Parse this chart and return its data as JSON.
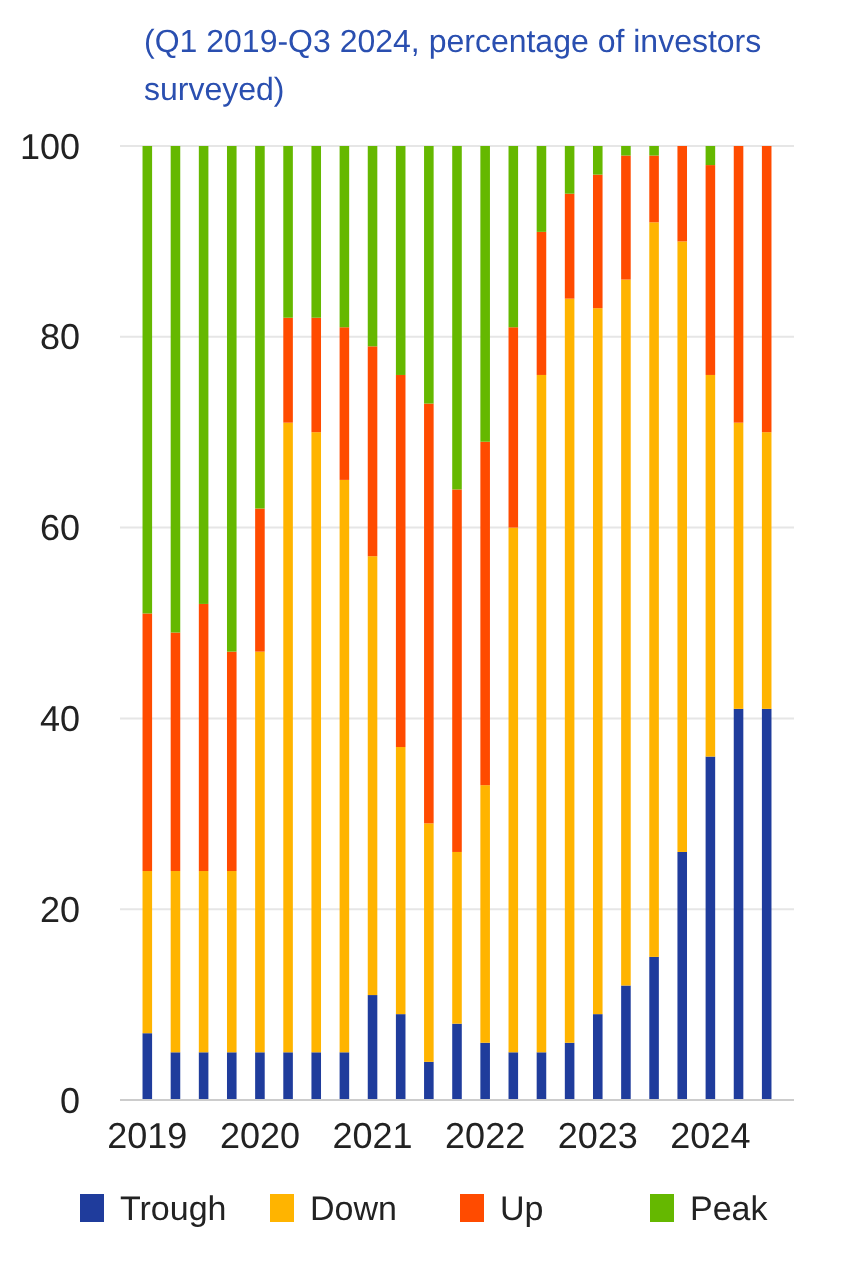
{
  "chart_data": {
    "type": "bar",
    "stacked": true,
    "subtitle": "(Q1 2019-Q3 2024, percentage of investors surveyed)",
    "categories": [
      "2019",
      null,
      null,
      null,
      "2020",
      null,
      null,
      null,
      "2021",
      null,
      null,
      null,
      "2022",
      null,
      null,
      null,
      "2023",
      null,
      null,
      null,
      "2024",
      null,
      null
    ],
    "series": [
      {
        "name": "Trough",
        "color": "#1f3c9c",
        "values": [
          7,
          5,
          5,
          5,
          5,
          5,
          5,
          5,
          11,
          9,
          4,
          8,
          6,
          5,
          5,
          6,
          9,
          12,
          15,
          26,
          36,
          41,
          41
        ]
      },
      {
        "name": "Down",
        "color": "#ffb400",
        "values": [
          17,
          19,
          19,
          19,
          42,
          66,
          65,
          60,
          46,
          28,
          25,
          18,
          27,
          55,
          71,
          78,
          74,
          74,
          77,
          64,
          40,
          30,
          29
        ]
      },
      {
        "name": "Up",
        "color": "#ff4b00",
        "values": [
          27,
          25,
          28,
          23,
          15,
          11,
          12,
          16,
          22,
          39,
          44,
          38,
          36,
          21,
          15,
          11,
          14,
          13,
          7,
          10,
          22,
          29,
          30
        ]
      },
      {
        "name": "Peak",
        "color": "#65b800",
        "values": [
          49,
          51,
          48,
          53,
          38,
          18,
          18,
          19,
          21,
          24,
          27,
          36,
          31,
          19,
          9,
          5,
          3,
          1,
          1,
          0,
          2,
          0,
          0
        ]
      }
    ],
    "ylim": [
      0,
      100
    ],
    "yticks": [
      0,
      20,
      40,
      60,
      80,
      100
    ],
    "grid": "y",
    "legend": "bottom"
  }
}
